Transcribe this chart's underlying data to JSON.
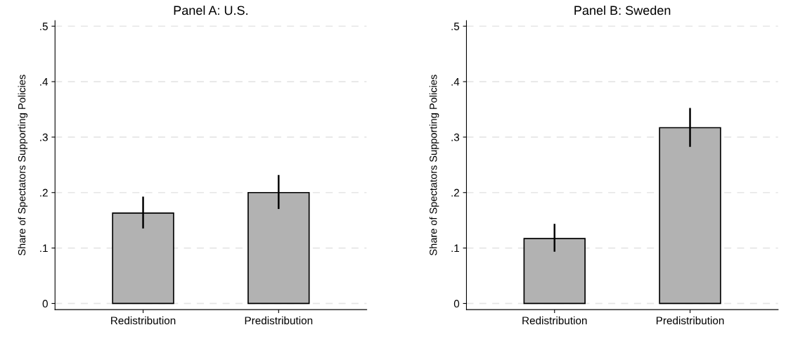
{
  "chart_data": [
    {
      "type": "bar",
      "title": "Panel A: U.S.",
      "ylabel": "Share of Spectators Supporting Policies",
      "categories": [
        "Redistribution",
        "Predistribution"
      ],
      "values": [
        0.163,
        0.2
      ],
      "errors": [
        [
          0.137,
          0.191
        ],
        [
          0.172,
          0.23
        ]
      ],
      "color": "#b2b2b2",
      "ylim": [
        -0.011,
        0.51
      ],
      "yticks": [
        0,
        {
          "value": 0.1,
          "label": ".1"
        },
        {
          "value": 0.2,
          "label": ".2"
        },
        {
          "value": 0.3,
          "label": ".3"
        },
        {
          "value": 0.4,
          "label": ".4"
        },
        {
          "value": 0.5,
          "label": ".5"
        }
      ],
      "grid": "y"
    },
    {
      "type": "bar",
      "title": "Panel B: Sweden",
      "ylabel": "Share of Spectators Supporting Policies",
      "categories": [
        "Redistribution",
        "Predistribution"
      ],
      "values": [
        0.117,
        0.317
      ],
      "errors": [
        [
          0.095,
          0.142
        ],
        [
          0.284,
          0.351
        ]
      ],
      "color": "#b2b2b2",
      "ylim": [
        -0.011,
        0.51
      ],
      "yticks": [
        0,
        {
          "value": 0.1,
          "label": ".1"
        },
        {
          "value": 0.2,
          "label": ".2"
        },
        {
          "value": 0.3,
          "label": ".3"
        },
        {
          "value": 0.4,
          "label": ".4"
        },
        {
          "value": 0.5,
          "label": ".5"
        }
      ],
      "grid": "y"
    }
  ]
}
